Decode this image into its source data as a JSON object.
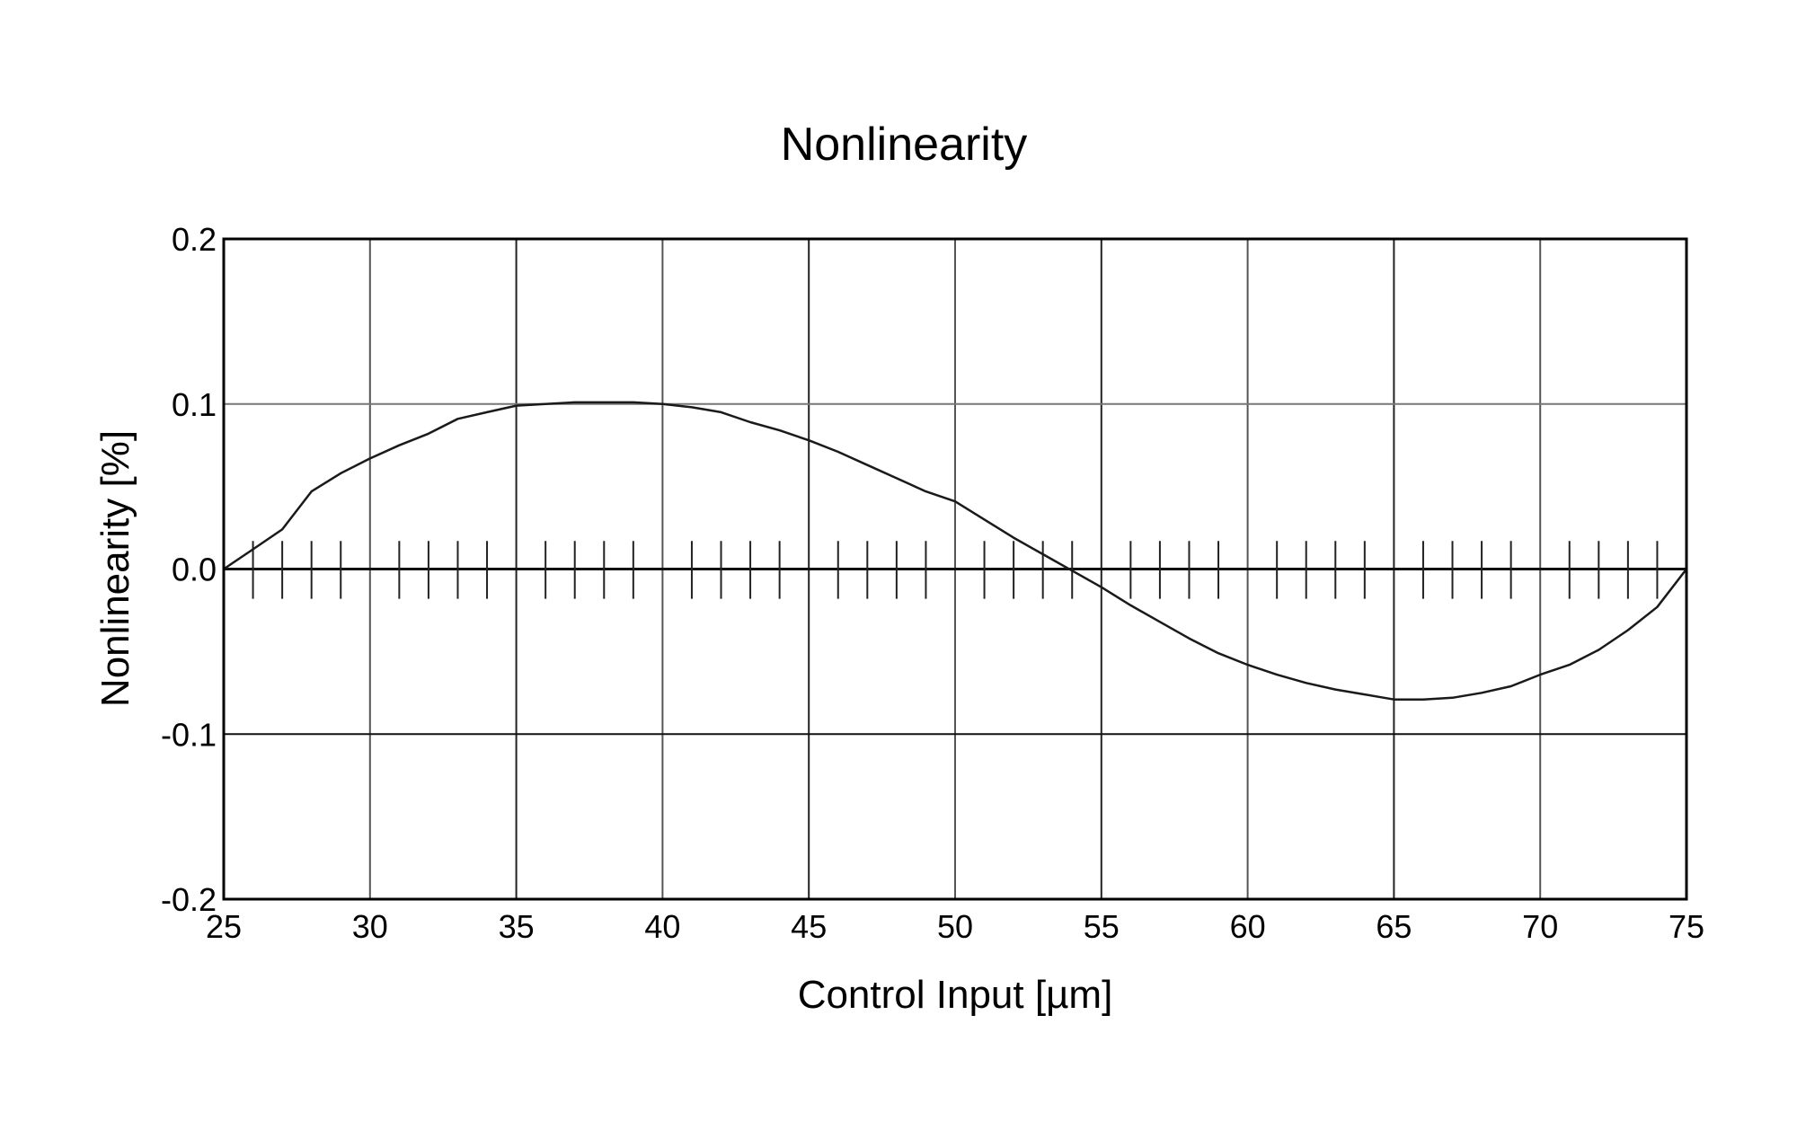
{
  "chart_data": {
    "type": "line",
    "title": "Nonlinearity",
    "xlabel": "Control Input [µm]",
    "ylabel": "Nonlinearity [%]",
    "xlim": [
      25,
      75
    ],
    "ylim": [
      -0.2,
      0.2
    ],
    "xticks": [
      "25",
      "30",
      "35",
      "40",
      "45",
      "50",
      "55",
      "60",
      "65",
      "70",
      "75"
    ],
    "yticks": [
      "0.2",
      "0.1",
      "0.0",
      "-0.1",
      "-0.2"
    ],
    "grid": true,
    "line_color": "#1a1a1a",
    "series": [
      {
        "x": [
          25,
          26,
          27,
          28,
          29,
          30,
          31,
          32,
          33,
          34,
          35,
          36,
          37,
          38,
          39,
          40,
          41,
          42,
          43,
          44,
          45,
          46,
          47,
          48,
          49,
          50,
          51,
          52,
          53,
          54,
          55,
          56,
          57,
          58,
          59,
          60,
          61,
          62,
          63,
          64,
          65,
          66,
          67,
          68,
          69,
          70,
          71,
          72,
          73,
          74,
          75
        ],
        "y": [
          0,
          0.012,
          0.024,
          0.047,
          0.058,
          0.067,
          0.075,
          0.082,
          0.091,
          0.095,
          0.099,
          0.1,
          0.101,
          0.101,
          0.101,
          0.1,
          0.098,
          0.095,
          0.089,
          0.084,
          0.078,
          0.071,
          0.063,
          0.055,
          0.047,
          0.041,
          0.03,
          0.019,
          0.009,
          -0.001,
          -0.011,
          -0.022,
          -0.032,
          -0.042,
          -0.051,
          -0.058,
          -0.064,
          -0.069,
          -0.073,
          -0.076,
          -0.079,
          -0.079,
          -0.078,
          -0.075,
          -0.071,
          -0.064,
          -0.058,
          -0.049,
          -0.037,
          -0.023,
          0
        ]
      }
    ],
    "marker_ticks_x": [
      26,
      27,
      28,
      29,
      31,
      32,
      33,
      34,
      36,
      37,
      38,
      39,
      41,
      42,
      43,
      44,
      46,
      47,
      48,
      49,
      51,
      52,
      53,
      54,
      56,
      57,
      58,
      59,
      61,
      62,
      63,
      64,
      66,
      67,
      68,
      69,
      71,
      72,
      73,
      74
    ]
  }
}
